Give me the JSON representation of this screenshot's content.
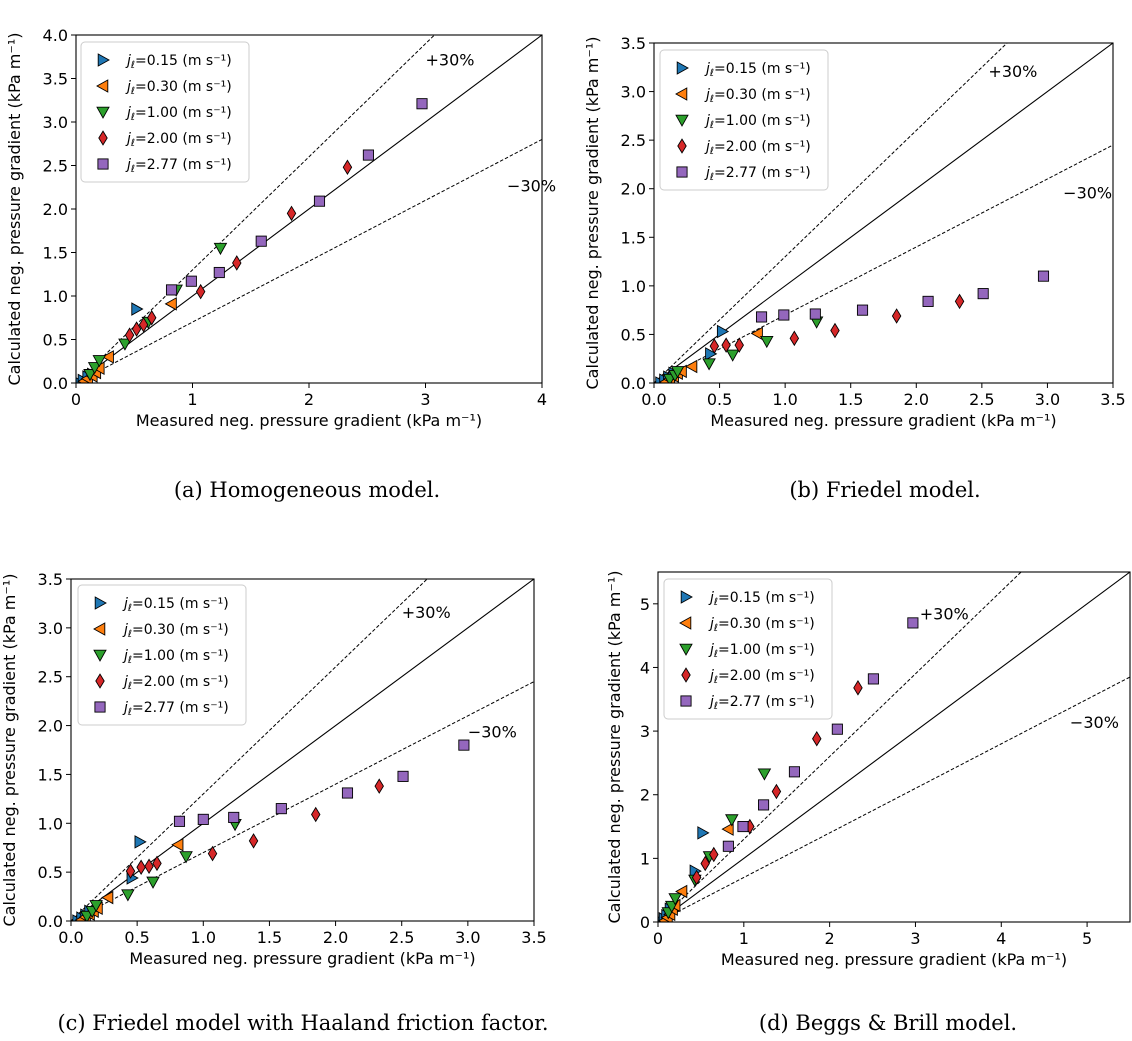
{
  "legend_entries": [
    {
      "label": "jℓ=0.15 (m s⁻¹)",
      "marker": "triangle-right",
      "color": "#1f77b4"
    },
    {
      "label": "jℓ=0.30 (m s⁻¹)",
      "marker": "triangle-left",
      "color": "#ff7f0e"
    },
    {
      "label": "jℓ=1.00 (m s⁻¹)",
      "marker": "triangle-down",
      "color": "#2ca02c"
    },
    {
      "label": "jℓ=2.00 (m s⁻¹)",
      "marker": "diamond",
      "color": "#d62728"
    },
    {
      "label": "jℓ=2.77 (m s⁻¹)",
      "marker": "square",
      "color": "#9467bd"
    }
  ],
  "chart_data": [
    {
      "type": "scatter",
      "caption": "(a) Homogeneous model.",
      "xlabel": "Measured neg. pressure gradient (kPa m⁻¹)",
      "ylabel": "Calculated neg. pressure gradient (kPa m⁻¹)",
      "xlim": [
        0,
        4
      ],
      "ylim": [
        0,
        4
      ],
      "xticks": [
        "0",
        "1",
        "2",
        "3",
        "4"
      ],
      "yticks": [
        "0.0",
        "0.5",
        "1.0",
        "1.5",
        "2.0",
        "2.5",
        "3.0",
        "3.5",
        "4.0"
      ],
      "xtick_values": [
        0,
        1,
        2,
        3,
        4
      ],
      "ytick_values": [
        0,
        0.5,
        1,
        1.5,
        2,
        2.5,
        3,
        3.5,
        4
      ],
      "annotations": [
        {
          "text": "+30%",
          "x": 3.0,
          "y": 3.65
        },
        {
          "text": "−30%",
          "x": 3.7,
          "y": 2.2
        }
      ],
      "series": [
        {
          "name": "jℓ=0.15 (m s⁻¹)",
          "x": [
            0.03,
            0.06,
            0.1,
            0.14,
            0.52
          ],
          "y": [
            0.0,
            0.03,
            0.07,
            0.1,
            0.85
          ]
        },
        {
          "name": "jℓ=0.30 (m s⁻¹)",
          "x": [
            0.07,
            0.1,
            0.14,
            0.17,
            0.2,
            0.28,
            0.82
          ],
          "y": [
            0.02,
            0.05,
            0.08,
            0.12,
            0.17,
            0.3,
            0.91
          ]
        },
        {
          "name": "jℓ=1.00 (m s⁻¹)",
          "x": [
            0.12,
            0.16,
            0.2,
            0.42,
            0.62,
            0.86,
            1.24
          ],
          "y": [
            0.1,
            0.18,
            0.26,
            0.45,
            0.7,
            1.07,
            1.55
          ]
        },
        {
          "name": "jℓ=2.00 (m s⁻¹)",
          "x": [
            0.46,
            0.52,
            0.58,
            0.65,
            1.07,
            1.38,
            1.85,
            2.33
          ],
          "y": [
            0.55,
            0.62,
            0.67,
            0.75,
            1.05,
            1.38,
            1.95,
            2.48
          ]
        },
        {
          "name": "jℓ=2.77 (m s⁻¹)",
          "x": [
            0.82,
            0.99,
            1.23,
            1.59,
            2.09,
            2.51,
            2.97
          ],
          "y": [
            1.07,
            1.17,
            1.27,
            1.63,
            2.09,
            2.62,
            3.21
          ]
        }
      ]
    },
    {
      "type": "scatter",
      "caption": "(b) Friedel model.",
      "xlabel": "Measured neg. pressure gradient (kPa m⁻¹)",
      "ylabel": "Calculated neg. pressure gradient (kPa m⁻¹)",
      "xlim": [
        0,
        3.5
      ],
      "ylim": [
        0,
        3.5
      ],
      "xticks": [
        "0.0",
        "0.5",
        "1.0",
        "1.5",
        "2.0",
        "2.5",
        "3.0",
        "3.5"
      ],
      "yticks": [
        "0.0",
        "0.5",
        "1.0",
        "1.5",
        "2.0",
        "2.5",
        "3.0",
        "3.5"
      ],
      "xtick_values": [
        0,
        0.5,
        1,
        1.5,
        2,
        2.5,
        3,
        3.5
      ],
      "ytick_values": [
        0,
        0.5,
        1,
        1.5,
        2,
        2.5,
        3,
        3.5
      ],
      "annotations": [
        {
          "text": "+30%",
          "x": 2.55,
          "y": 3.15
        },
        {
          "text": "−30%",
          "x": 3.12,
          "y": 1.9
        }
      ],
      "series": [
        {
          "name": "jℓ=0.15 (m s⁻¹)",
          "x": [
            0.05,
            0.08,
            0.11,
            0.15,
            0.43,
            0.52
          ],
          "y": [
            0.0,
            0.03,
            0.06,
            0.1,
            0.3,
            0.53
          ]
        },
        {
          "name": "jℓ=0.30 (m s⁻¹)",
          "x": [
            0.09,
            0.12,
            0.15,
            0.18,
            0.21,
            0.29,
            0.79
          ],
          "y": [
            0.01,
            0.04,
            0.07,
            0.1,
            0.12,
            0.17,
            0.51
          ]
        },
        {
          "name": "jℓ=1.00 (m s⁻¹)",
          "x": [
            0.12,
            0.16,
            0.18,
            0.42,
            0.6,
            0.86,
            1.24
          ],
          "y": [
            0.04,
            0.08,
            0.12,
            0.2,
            0.29,
            0.43,
            0.63
          ]
        },
        {
          "name": "jℓ=2.00 (m s⁻¹)",
          "x": [
            0.46,
            0.55,
            0.65,
            1.07,
            1.38,
            1.85,
            2.33
          ],
          "y": [
            0.38,
            0.39,
            0.39,
            0.46,
            0.54,
            0.69,
            0.84
          ]
        },
        {
          "name": "jℓ=2.77 (m s⁻¹)",
          "x": [
            0.82,
            0.99,
            1.23,
            1.59,
            2.09,
            2.51,
            2.97
          ],
          "y": [
            0.68,
            0.7,
            0.71,
            0.75,
            0.84,
            0.92,
            1.1
          ]
        }
      ]
    },
    {
      "type": "scatter",
      "caption": "(c) Friedel model with Haaland friction factor.",
      "xlabel": "Measured neg. pressure gradient (kPa m⁻¹)",
      "ylabel": "Calculated neg. pressure gradient (kPa m⁻¹)",
      "xlim": [
        0,
        3.5
      ],
      "ylim": [
        0,
        3.5
      ],
      "xticks": [
        "0.0",
        "0.5",
        "1.0",
        "1.5",
        "2.0",
        "2.5",
        "3.0",
        "3.5"
      ],
      "yticks": [
        "0.0",
        "0.5",
        "1.0",
        "1.5",
        "2.0",
        "2.5",
        "3.0",
        "3.5"
      ],
      "xtick_values": [
        0,
        0.5,
        1,
        1.5,
        2,
        2.5,
        3,
        3.5
      ],
      "ytick_values": [
        0,
        0.5,
        1,
        1.5,
        2,
        2.5,
        3,
        3.5
      ],
      "annotations": [
        {
          "text": "+30%",
          "x": 2.5,
          "y": 3.1
        },
        {
          "text": "−30%",
          "x": 3.0,
          "y": 1.88
        }
      ],
      "series": [
        {
          "name": "jℓ=0.15 (m s⁻¹)",
          "x": [
            0.05,
            0.08,
            0.11,
            0.14,
            0.46,
            0.52
          ],
          "y": [
            0.0,
            0.03,
            0.06,
            0.1,
            0.44,
            0.81
          ]
        },
        {
          "name": "jℓ=0.30 (m s⁻¹)",
          "x": [
            0.08,
            0.11,
            0.14,
            0.17,
            0.2,
            0.28,
            0.81
          ],
          "y": [
            0.01,
            0.04,
            0.07,
            0.1,
            0.13,
            0.24,
            0.78
          ]
        },
        {
          "name": "jℓ=1.00 (m s⁻¹)",
          "x": [
            0.12,
            0.16,
            0.19,
            0.43,
            0.62,
            0.87,
            1.24
          ],
          "y": [
            0.05,
            0.1,
            0.16,
            0.27,
            0.4,
            0.66,
            0.99
          ]
        },
        {
          "name": "jℓ=2.00 (m s⁻¹)",
          "x": [
            0.45,
            0.53,
            0.59,
            0.65,
            1.07,
            1.38,
            1.85,
            2.33
          ],
          "y": [
            0.51,
            0.55,
            0.56,
            0.59,
            0.69,
            0.82,
            1.09,
            1.38
          ]
        },
        {
          "name": "jℓ=2.77 (m s⁻¹)",
          "x": [
            0.82,
            1.0,
            1.23,
            1.59,
            2.09,
            2.51,
            2.97
          ],
          "y": [
            1.02,
            1.04,
            1.06,
            1.15,
            1.31,
            1.48,
            1.8
          ]
        }
      ]
    },
    {
      "type": "scatter",
      "caption": "(d) Beggs & Brill model.",
      "xlabel": "Measured neg. pressure gradient (kPa m⁻¹)",
      "ylabel": "Calculated neg. pressure gradient (kPa m⁻¹)",
      "xlim": [
        0,
        5.5
      ],
      "ylim": [
        0,
        5.5
      ],
      "xticks": [
        "0",
        "1",
        "2",
        "3",
        "4",
        "5"
      ],
      "yticks": [
        "0",
        "1",
        "2",
        "3",
        "4",
        "5"
      ],
      "xtick_values": [
        0,
        1,
        2,
        3,
        4,
        5
      ],
      "ytick_values": [
        0,
        1,
        2,
        3,
        4,
        5
      ],
      "annotations": [
        {
          "text": "+30%",
          "x": 3.05,
          "y": 4.75
        },
        {
          "text": "−30%",
          "x": 4.8,
          "y": 3.05
        }
      ],
      "series": [
        {
          "name": "jℓ=0.15 (m s⁻¹)",
          "x": [
            0.04,
            0.07,
            0.1,
            0.14,
            0.43,
            0.52
          ],
          "y": [
            0.0,
            0.05,
            0.1,
            0.2,
            0.8,
            1.4
          ]
        },
        {
          "name": "jℓ=0.30 (m s⁻¹)",
          "x": [
            0.08,
            0.11,
            0.14,
            0.17,
            0.2,
            0.28,
            0.82
          ],
          "y": [
            0.02,
            0.07,
            0.12,
            0.2,
            0.26,
            0.48,
            1.46
          ]
        },
        {
          "name": "jℓ=1.00 (m s⁻¹)",
          "x": [
            0.12,
            0.16,
            0.2,
            0.43,
            0.6,
            0.86,
            1.24
          ],
          "y": [
            0.15,
            0.25,
            0.37,
            0.66,
            1.03,
            1.61,
            2.33
          ]
        },
        {
          "name": "jℓ=2.00 (m s⁻¹)",
          "x": [
            0.45,
            0.55,
            0.65,
            1.07,
            1.38,
            1.85,
            2.33
          ],
          "y": [
            0.7,
            0.92,
            1.06,
            1.5,
            2.05,
            2.88,
            3.68
          ]
        },
        {
          "name": "jℓ=2.77 (m s⁻¹)",
          "x": [
            0.82,
            0.99,
            1.23,
            1.59,
            2.09,
            2.51,
            2.97
          ],
          "y": [
            1.19,
            1.5,
            1.84,
            2.36,
            3.03,
            3.82,
            4.7
          ]
        }
      ]
    }
  ]
}
